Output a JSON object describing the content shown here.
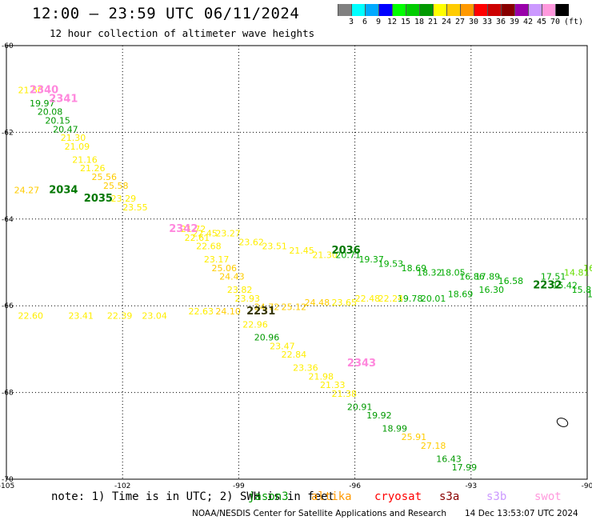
{
  "header": {
    "title": "12:00 – 23:59 UTC 06/11/2024",
    "subtitle": "12 hour collection of altimeter wave heights"
  },
  "color_scale": {
    "unit": "(ft)",
    "colors": [
      "#808080",
      "#00ffff",
      "#00aaff",
      "#0000ff",
      "#00ff00",
      "#00cc00",
      "#009900",
      "#ffff00",
      "#ffcc00",
      "#ff9900",
      "#ff0000",
      "#cc0000",
      "#880000",
      "#9900aa",
      "#cc99ff",
      "#ff99dd",
      "#000000"
    ],
    "labels": [
      "3",
      "6",
      "9",
      "12",
      "15",
      "18",
      "21",
      "24",
      "27",
      "30",
      "33",
      "36",
      "39",
      "42",
      "45",
      "70"
    ]
  },
  "axes": {
    "lon_ticks": [
      "-105",
      "-102",
      "-99",
      "-96",
      "-93",
      "-90"
    ],
    "lat_ticks": [
      "-60",
      "-62",
      "-64",
      "-66",
      "-68",
      "-70"
    ]
  },
  "chart_data": {
    "type": "scatter",
    "passes": [
      {
        "time": "2340",
        "color": "#ff88dd",
        "lon": -104.4,
        "lat": -61.1
      },
      {
        "time": "2341",
        "color": "#ff88dd",
        "lon": -103.9,
        "lat": -61.3
      },
      {
        "time": "2034",
        "color": "#007700",
        "lon": -103.9,
        "lat": -63.4
      },
      {
        "time": "2035",
        "color": "#007700",
        "lon": -103.0,
        "lat": -63.6
      },
      {
        "time": "2342",
        "color": "#ff88dd",
        "lon": -100.8,
        "lat": -64.3
      },
      {
        "time": "2036",
        "color": "#007700",
        "lon": -96.6,
        "lat": -64.8
      },
      {
        "time": "2232",
        "color": "#007700",
        "lon": -91.4,
        "lat": -65.6
      },
      {
        "time": "2231",
        "color": "#333300",
        "lon": -98.8,
        "lat": -66.2
      },
      {
        "time": "2343",
        "color": "#ff88dd",
        "lon": -96.2,
        "lat": -67.4
      }
    ],
    "observations": [
      {
        "v": "21.50",
        "lon": -104.7,
        "lat": -61.1,
        "c": "#ffee00"
      },
      {
        "v": "19.97",
        "lon": -104.4,
        "lat": -61.4,
        "c": "#009900"
      },
      {
        "v": "20.08",
        "lon": -104.2,
        "lat": -61.6,
        "c": "#009900"
      },
      {
        "v": "20.15",
        "lon": -104.0,
        "lat": -61.8,
        "c": "#009900"
      },
      {
        "v": "20.47",
        "lon": -103.8,
        "lat": -62.0,
        "c": "#009900"
      },
      {
        "v": "21.30",
        "lon": -103.6,
        "lat": -62.2,
        "c": "#ffee00"
      },
      {
        "v": "21.09",
        "lon": -103.5,
        "lat": -62.4,
        "c": "#ffee00"
      },
      {
        "v": "21.16",
        "lon": -103.3,
        "lat": -62.7,
        "c": "#ffee00"
      },
      {
        "v": "21.26",
        "lon": -103.1,
        "lat": -62.9,
        "c": "#ffee00"
      },
      {
        "v": "25.56",
        "lon": -102.8,
        "lat": -63.1,
        "c": "#ffcc00"
      },
      {
        "v": "25.58",
        "lon": -102.5,
        "lat": -63.3,
        "c": "#ffcc00"
      },
      {
        "v": "24.27",
        "lon": -104.8,
        "lat": -63.4,
        "c": "#ffcc00"
      },
      {
        "v": "23.29",
        "lon": -102.3,
        "lat": -63.6,
        "c": "#ffee00"
      },
      {
        "v": "23.55",
        "lon": -102.0,
        "lat": -63.8,
        "c": "#ffee00"
      },
      {
        "v": "22.61",
        "lon": -100.4,
        "lat": -64.5,
        "c": "#ffee00"
      },
      {
        "v": "22.68",
        "lon": -100.1,
        "lat": -64.7,
        "c": "#ffee00"
      },
      {
        "v": "23.17",
        "lon": -99.9,
        "lat": -65.0,
        "c": "#ffee00"
      },
      {
        "v": "25.06",
        "lon": -99.7,
        "lat": -65.2,
        "c": "#ffcc00"
      },
      {
        "v": "24.43",
        "lon": -99.5,
        "lat": -65.4,
        "c": "#ffcc00"
      },
      {
        "v": "23.82",
        "lon": -99.3,
        "lat": -65.7,
        "c": "#ffee00"
      },
      {
        "v": "23.93",
        "lon": -99.1,
        "lat": -65.9,
        "c": "#ffee00"
      },
      {
        "v": "21.72",
        "lon": -100.5,
        "lat": -64.3,
        "c": "#ffee00"
      },
      {
        "v": "22.45",
        "lon": -100.2,
        "lat": -64.4,
        "c": "#ffee00"
      },
      {
        "v": "23.27",
        "lon": -99.6,
        "lat": -64.4,
        "c": "#ffee00"
      },
      {
        "v": "23.62",
        "lon": -99.0,
        "lat": -64.6,
        "c": "#ffee00"
      },
      {
        "v": "23.51",
        "lon": -98.4,
        "lat": -64.7,
        "c": "#ffee00"
      },
      {
        "v": "21.45",
        "lon": -97.7,
        "lat": -64.8,
        "c": "#ffee00"
      },
      {
        "v": "21.30",
        "lon": -97.1,
        "lat": -64.9,
        "c": "#ffee00"
      },
      {
        "v": "20.71",
        "lon": -96.5,
        "lat": -64.9,
        "c": "#00aa00"
      },
      {
        "v": "19.37",
        "lon": -95.9,
        "lat": -65.0,
        "c": "#00aa00"
      },
      {
        "v": "19.53",
        "lon": -95.4,
        "lat": -65.1,
        "c": "#00aa00"
      },
      {
        "v": "18.69",
        "lon": -94.8,
        "lat": -65.2,
        "c": "#00aa00"
      },
      {
        "v": "18.32",
        "lon": -94.4,
        "lat": -65.3,
        "c": "#00aa00"
      },
      {
        "v": "18.05",
        "lon": -93.8,
        "lat": -65.3,
        "c": "#00aa00"
      },
      {
        "v": "16.86",
        "lon": -93.3,
        "lat": -65.4,
        "c": "#00aa00"
      },
      {
        "v": "17.89",
        "lon": -92.9,
        "lat": -65.4,
        "c": "#00aa00"
      },
      {
        "v": "16.58",
        "lon": -92.3,
        "lat": -65.5,
        "c": "#00aa00"
      },
      {
        "v": "17.51",
        "lon": -91.2,
        "lat": -65.4,
        "c": "#00aa00"
      },
      {
        "v": "14.81",
        "lon": -90.6,
        "lat": -65.3,
        "c": "#66dd00"
      },
      {
        "v": "16.8",
        "lon": -90.1,
        "lat": -65.2,
        "c": "#66dd00"
      },
      {
        "v": "15.42",
        "lon": -90.9,
        "lat": -65.6,
        "c": "#00aa00"
      },
      {
        "v": "15.81",
        "lon": -90.4,
        "lat": -65.7,
        "c": "#00aa00"
      },
      {
        "v": "15.",
        "lon": -90.0,
        "lat": -65.8,
        "c": "#00aa00"
      },
      {
        "v": "16.30",
        "lon": -92.8,
        "lat": -65.7,
        "c": "#00aa00"
      },
      {
        "v": "18.69",
        "lon": -93.6,
        "lat": -65.8,
        "c": "#00aa00"
      },
      {
        "v": "20.01",
        "lon": -94.3,
        "lat": -65.9,
        "c": "#00aa00"
      },
      {
        "v": "19.78",
        "lon": -94.9,
        "lat": -65.9,
        "c": "#00aa00"
      },
      {
        "v": "22.24",
        "lon": -95.4,
        "lat": -65.9,
        "c": "#ffee00"
      },
      {
        "v": "22.48",
        "lon": -96.0,
        "lat": -65.9,
        "c": "#ffee00"
      },
      {
        "v": "23.65",
        "lon": -96.6,
        "lat": -66.0,
        "c": "#ffee00"
      },
      {
        "v": "24.48",
        "lon": -97.3,
        "lat": -66.0,
        "c": "#ffcc00"
      },
      {
        "v": "25.12",
        "lon": -97.9,
        "lat": -66.1,
        "c": "#ffcc00"
      },
      {
        "v": "24.72",
        "lon": -98.6,
        "lat": -66.1,
        "c": "#ffcc00"
      },
      {
        "v": "24.10",
        "lon": -99.6,
        "lat": -66.2,
        "c": "#ffcc00"
      },
      {
        "v": "22.63",
        "lon": -100.3,
        "lat": -66.2,
        "c": "#ffee00"
      },
      {
        "v": "23.04",
        "lon": -101.5,
        "lat": -66.3,
        "c": "#ffee00"
      },
      {
        "v": "22.39",
        "lon": -102.4,
        "lat": -66.3,
        "c": "#ffee00"
      },
      {
        "v": "23.41",
        "lon": -103.4,
        "lat": -66.3,
        "c": "#ffee00"
      },
      {
        "v": "22.60",
        "lon": -104.7,
        "lat": -66.3,
        "c": "#ffee00"
      },
      {
        "v": "22.96",
        "lon": -98.9,
        "lat": -66.5,
        "c": "#ffee00"
      },
      {
        "v": "20.96",
        "lon": -98.6,
        "lat": -66.8,
        "c": "#009900"
      },
      {
        "v": "23.47",
        "lon": -98.2,
        "lat": -67.0,
        "c": "#ffee00"
      },
      {
        "v": "22.84",
        "lon": -97.9,
        "lat": -67.2,
        "c": "#ffee00"
      },
      {
        "v": "23.36",
        "lon": -97.6,
        "lat": -67.5,
        "c": "#ffee00"
      },
      {
        "v": "21.98",
        "lon": -97.2,
        "lat": -67.7,
        "c": "#ffee00"
      },
      {
        "v": "21.33",
        "lon": -96.9,
        "lat": -67.9,
        "c": "#ffee00"
      },
      {
        "v": "21.38",
        "lon": -96.6,
        "lat": -68.1,
        "c": "#ffee00"
      },
      {
        "v": "20.91",
        "lon": -96.2,
        "lat": -68.4,
        "c": "#009900"
      },
      {
        "v": "19.92",
        "lon": -95.7,
        "lat": -68.6,
        "c": "#009900"
      },
      {
        "v": "18.99",
        "lon": -95.3,
        "lat": -68.9,
        "c": "#009900"
      },
      {
        "v": "25.91",
        "lon": -94.8,
        "lat": -69.1,
        "c": "#ffcc00"
      },
      {
        "v": "27.18",
        "lon": -94.3,
        "lat": -69.3,
        "c": "#ffcc00"
      },
      {
        "v": "16.43",
        "lon": -93.9,
        "lat": -69.6,
        "c": "#009900"
      },
      {
        "v": "17.99",
        "lon": -93.5,
        "lat": -69.8,
        "c": "#009900"
      }
    ]
  },
  "footer": {
    "note": "note: 1) Time is in UTC; 2) SWH is in feet",
    "satellites": [
      {
        "name": "jason3",
        "color": "#009900"
      },
      {
        "name": "altika",
        "color": "#ff9900"
      },
      {
        "name": "cryosat",
        "color": "#ff0000"
      },
      {
        "name": "s3a",
        "color": "#880000"
      },
      {
        "name": "s3b",
        "color": "#cc99ff"
      },
      {
        "name": "swot",
        "color": "#ff99dd"
      }
    ],
    "credit": "NOAA/NESDIS Center for Satellite Applications and Research",
    "generated": "14 Dec 13:53:07 UTC 2024"
  }
}
